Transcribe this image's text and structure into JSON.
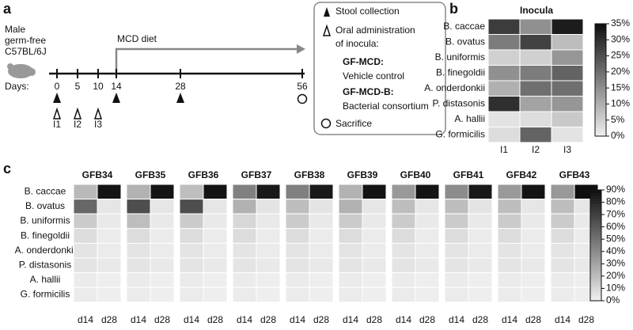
{
  "panel_a": {
    "label": "a",
    "mouse": [
      "Male",
      "germ-free",
      "C57BL/6J"
    ],
    "days_label": "Days:",
    "days": [
      0,
      5,
      10,
      14,
      28,
      56
    ],
    "diet": "MCD diet",
    "inocula": [
      "I1",
      "I2",
      "I3"
    ],
    "legend": {
      "stool": "Stool collection",
      "oral": [
        "Oral administration",
        "of inocula:"
      ],
      "gf_mcd": "GF-MCD:",
      "gf_mcd_desc": "Vehicle control",
      "gf_mcd_b": "GF-MCD-B:",
      "gf_mcd_b_desc": "Bacterial consortium",
      "sacrifice": "Sacrifice"
    }
  },
  "panel_b": {
    "label": "b",
    "title": "Inocula",
    "rows": [
      "B. caccae",
      "B. ovatus",
      "B. uniformis",
      "B. finegoldii",
      "A. onderdonkii",
      "P. distasonis",
      "A. hallii",
      "G. formicilis"
    ],
    "columns": [
      "I1",
      "I2",
      "I3"
    ],
    "values": [
      [
        28,
        15,
        33
      ],
      [
        18,
        27,
        8
      ],
      [
        5,
        5,
        14
      ],
      [
        15,
        18,
        22
      ],
      [
        10,
        20,
        20
      ],
      [
        30,
        12,
        14
      ],
      [
        2,
        3,
        6
      ],
      [
        3,
        22,
        2
      ]
    ],
    "clim": [
      0,
      35
    ],
    "cticks": [
      {
        "value": 0,
        "label": "0%"
      },
      {
        "value": 5,
        "label": "5%"
      },
      {
        "value": 10,
        "label": "10%"
      },
      {
        "value": 15,
        "label": "15%"
      },
      {
        "value": 20,
        "label": "20%"
      },
      {
        "value": 25,
        "label": "25%"
      },
      {
        "value": 30,
        "label": "30%"
      },
      {
        "value": 35,
        "label": "35%"
      }
    ]
  },
  "panel_c": {
    "label": "c",
    "rows": [
      "B. caccae",
      "B. ovatus",
      "B. uniformis",
      "B. finegoldii",
      "A. onderdonkii",
      "P. distasonis",
      "A. hallii",
      "G. formicilis"
    ],
    "timepoints": [
      "d14",
      "d28"
    ],
    "mice": [
      {
        "name": "GFB34",
        "values": [
          [
            22,
            55,
            15,
            8,
            5,
            5,
            2,
            2
          ],
          [
            88,
            4,
            3,
            2,
            2,
            3,
            1,
            1
          ]
        ]
      },
      {
        "name": "GFB35",
        "values": [
          [
            25,
            65,
            20,
            8,
            5,
            5,
            2,
            2
          ],
          [
            88,
            4,
            3,
            2,
            2,
            3,
            1,
            1
          ]
        ]
      },
      {
        "name": "GFB36",
        "values": [
          [
            20,
            65,
            15,
            8,
            5,
            5,
            2,
            2
          ],
          [
            88,
            4,
            3,
            2,
            2,
            3,
            1,
            1
          ]
        ]
      },
      {
        "name": "GFB37",
        "values": [
          [
            45,
            25,
            10,
            8,
            5,
            5,
            2,
            2
          ],
          [
            86,
            5,
            3,
            2,
            2,
            3,
            1,
            1
          ]
        ]
      },
      {
        "name": "GFB38",
        "values": [
          [
            45,
            20,
            15,
            8,
            5,
            5,
            2,
            2
          ],
          [
            86,
            5,
            3,
            2,
            2,
            3,
            1,
            1
          ]
        ]
      },
      {
        "name": "GFB39",
        "values": [
          [
            25,
            25,
            15,
            8,
            5,
            5,
            2,
            2
          ],
          [
            88,
            4,
            3,
            2,
            2,
            3,
            1,
            1
          ]
        ]
      },
      {
        "name": "GFB40",
        "values": [
          [
            35,
            20,
            15,
            8,
            5,
            5,
            2,
            2
          ],
          [
            88,
            4,
            3,
            2,
            2,
            3,
            1,
            1
          ]
        ]
      },
      {
        "name": "GFB41",
        "values": [
          [
            40,
            20,
            15,
            8,
            5,
            5,
            2,
            2
          ],
          [
            86,
            5,
            3,
            2,
            2,
            3,
            1,
            1
          ]
        ]
      },
      {
        "name": "GFB42",
        "values": [
          [
            35,
            20,
            15,
            8,
            5,
            5,
            2,
            2
          ],
          [
            88,
            4,
            3,
            2,
            2,
            3,
            1,
            1
          ]
        ]
      },
      {
        "name": "GFB43",
        "values": [
          [
            35,
            20,
            15,
            8,
            5,
            5,
            2,
            2
          ],
          [
            90,
            4,
            3,
            2,
            2,
            3,
            1,
            1
          ]
        ]
      }
    ],
    "clim": [
      0,
      90
    ],
    "cticks": [
      {
        "value": 0,
        "label": "0%"
      },
      {
        "value": 10,
        "label": "10%"
      },
      {
        "value": 20,
        "label": "20%"
      },
      {
        "value": 30,
        "label": "30%"
      },
      {
        "value": 40,
        "label": "40%"
      },
      {
        "value": 50,
        "label": "50%"
      },
      {
        "value": 60,
        "label": "60%"
      },
      {
        "value": 70,
        "label": "70%"
      },
      {
        "value": 80,
        "label": "80%"
      },
      {
        "value": 90,
        "label": "90%"
      }
    ]
  }
}
